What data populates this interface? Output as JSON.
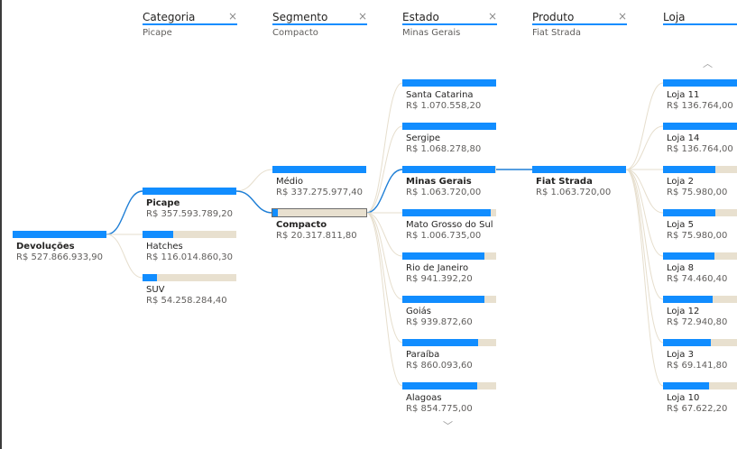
{
  "columns": [
    {
      "title": "Categoria",
      "filter": "Picape",
      "close": "×"
    },
    {
      "title": "Segmento",
      "filter": "Compacto",
      "close": "×"
    },
    {
      "title": "Estado",
      "filter": "Minas Gerais",
      "close": "×"
    },
    {
      "title": "Produto",
      "filter": "Fiat Strada",
      "close": "×"
    },
    {
      "title": "Loja",
      "filter": "",
      "close": ""
    }
  ],
  "nav": {
    "scroll_up_icon": "chevron-up-icon",
    "scroll_down_icon": "chevron-down-icon"
  },
  "colors": {
    "bar": "#118dff",
    "track": "#e8e0cf",
    "active_link": "#1f7fd6",
    "inactive_link": "#e6decd"
  },
  "chart_data": {
    "type": "decomposition-tree",
    "root": {
      "label": "Devoluções",
      "value": "R$ 527.866.933,90",
      "amount": 527866933.9
    },
    "levels": [
      {
        "name": "Categoria",
        "selected": "Picape",
        "nodes": [
          {
            "label": "Picape",
            "value": "R$ 357.593.789,20",
            "amount": 357593789.2
          },
          {
            "label": "Hatches",
            "value": "R$ 116.014.860,30",
            "amount": 116014860.3
          },
          {
            "label": "SUV",
            "value": "R$ 54.258.284,40",
            "amount": 54258284.4
          }
        ]
      },
      {
        "name": "Segmento",
        "selected": "Compacto",
        "nodes": [
          {
            "label": "Médio",
            "value": "R$ 337.275.977,40",
            "amount": 337275977.4
          },
          {
            "label": "Compacto",
            "value": "R$ 20.317.811,80",
            "amount": 20317811.8
          }
        ]
      },
      {
        "name": "Estado",
        "selected": "Minas Gerais",
        "nodes": [
          {
            "label": "Santa Catarina",
            "value": "R$ 1.070.558,20",
            "amount": 1070558.2
          },
          {
            "label": "Sergipe",
            "value": "R$ 1.068.278,80",
            "amount": 1068278.8
          },
          {
            "label": "Minas Gerais",
            "value": "R$ 1.063.720,00",
            "amount": 1063720.0
          },
          {
            "label": "Mato Grosso do Sul",
            "value": "R$ 1.006.735,00",
            "amount": 1006735.0
          },
          {
            "label": "Rio de Janeiro",
            "value": "R$ 941.392,20",
            "amount": 941392.2
          },
          {
            "label": "Goiás",
            "value": "R$ 939.872,60",
            "amount": 939872.6
          },
          {
            "label": "Paraíba",
            "value": "R$ 860.093,60",
            "amount": 860093.6
          },
          {
            "label": "Alagoas",
            "value": "R$ 854.775,00",
            "amount": 854775.0
          }
        ]
      },
      {
        "name": "Produto",
        "selected": "Fiat Strada",
        "nodes": [
          {
            "label": "Fiat Strada",
            "value": "R$ 1.063.720,00",
            "amount": 1063720.0
          }
        ]
      },
      {
        "name": "Loja",
        "selected": "",
        "nodes": [
          {
            "label": "Loja 11",
            "value": "R$ 136.764,00",
            "amount": 136764.0
          },
          {
            "label": "Loja 14",
            "value": "R$ 136.764,00",
            "amount": 136764.0
          },
          {
            "label": "Loja 2",
            "value": "R$ 75.980,00",
            "amount": 75980.0
          },
          {
            "label": "Loja 5",
            "value": "R$ 75.980,00",
            "amount": 75980.0
          },
          {
            "label": "Loja 8",
            "value": "R$ 74.460,40",
            "amount": 74460.4
          },
          {
            "label": "Loja 12",
            "value": "R$ 72.940,80",
            "amount": 72940.8
          },
          {
            "label": "Loja 3",
            "value": "R$ 69.141,80",
            "amount": 69141.8
          },
          {
            "label": "Loja 10",
            "value": "R$ 67.622,20",
            "amount": 67622.2
          }
        ]
      }
    ]
  }
}
